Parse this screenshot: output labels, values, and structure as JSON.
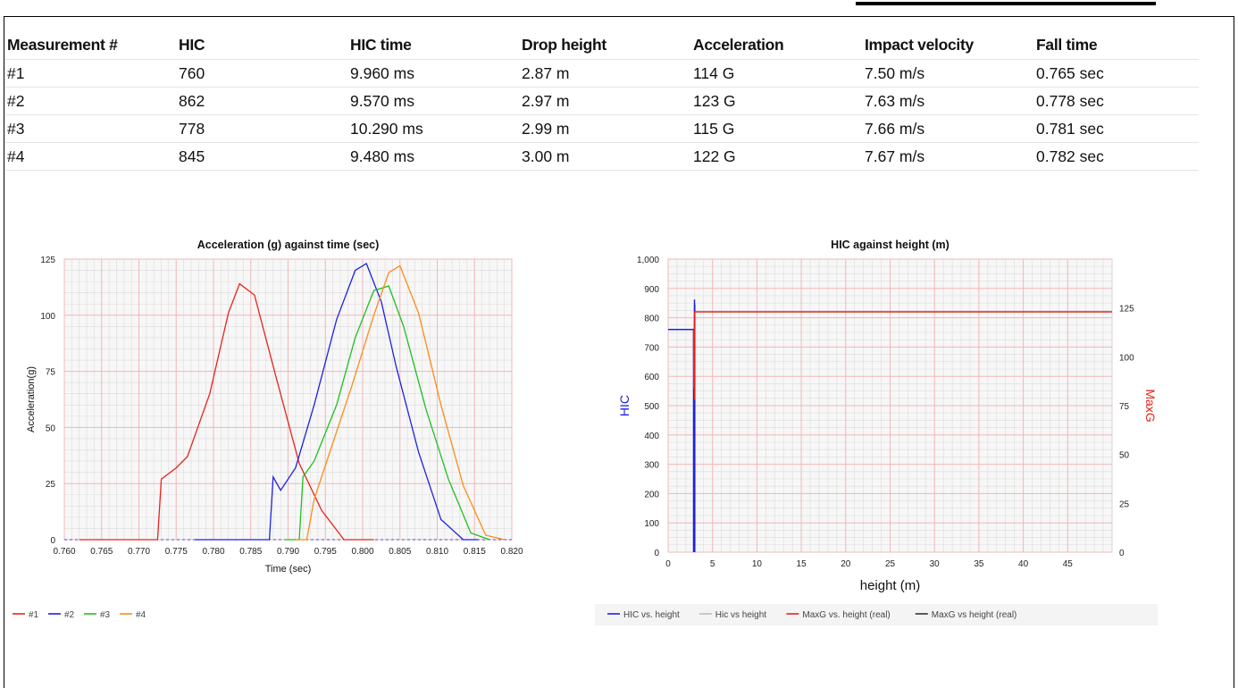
{
  "table": {
    "headers": [
      "Measurement #",
      "HIC",
      "HIC time",
      "Drop height",
      "Acceleration",
      "Impact velocity",
      "Fall time"
    ],
    "rows": [
      [
        "#1",
        "760",
        "9.960 ms",
        "2.87 m",
        "114 G",
        "7.50 m/s",
        "0.765 sec"
      ],
      [
        "#2",
        "862",
        "9.570 ms",
        "2.97 m",
        "123 G",
        "7.63 m/s",
        "0.778 sec"
      ],
      [
        "#3",
        "778",
        "10.290 ms",
        "2.99 m",
        "115 G",
        "7.66 m/s",
        "0.781 sec"
      ],
      [
        "#4",
        "845",
        "9.480 ms",
        "3.00 m",
        "122 G",
        "7.67 m/s",
        "0.782 sec"
      ]
    ]
  },
  "chart_data": [
    {
      "type": "line",
      "title": "Acceleration (g) against time (sec)",
      "xlabel": "Time (sec)",
      "ylabel": "Acceleration(g)",
      "xlim": [
        0.76,
        0.82
      ],
      "ylim": [
        0,
        125
      ],
      "x_ticks": [
        "0.760",
        "0.765",
        "0.770",
        "0.775",
        "0.780",
        "0.785",
        "0.790",
        "0.795",
        "0.800",
        "0.805",
        "0.810",
        "0.815",
        "0.820"
      ],
      "y_ticks": [
        "0",
        "25",
        "50",
        "75",
        "100",
        "125"
      ],
      "grid": true,
      "legend_position": "bottom-left",
      "series": [
        {
          "name": "#1",
          "color": "#e8231b",
          "x": [
            0.762,
            0.7725,
            0.773,
            0.775,
            0.7765,
            0.7795,
            0.782,
            0.7835,
            0.7855,
            0.7885,
            0.7915,
            0.7945,
            0.7975,
            0.8015
          ],
          "y": [
            0,
            0,
            27,
            32,
            37,
            65,
            101,
            114,
            109,
            71,
            34,
            13,
            0,
            0
          ]
        },
        {
          "name": "#2",
          "color": "#1c22e0",
          "x": [
            0.7775,
            0.7875,
            0.788,
            0.789,
            0.791,
            0.7935,
            0.7965,
            0.799,
            0.8005,
            0.8025,
            0.8045,
            0.8075,
            0.8105,
            0.8135,
            0.8155
          ],
          "y": [
            0,
            0,
            28,
            22,
            32,
            60,
            98,
            120,
            123,
            106,
            77,
            39,
            9,
            0,
            0
          ]
        },
        {
          "name": "#3",
          "color": "#1fbf1f",
          "x": [
            0.7895,
            0.7915,
            0.792,
            0.7935,
            0.7965,
            0.799,
            0.8015,
            0.8035,
            0.8055,
            0.8085,
            0.8115,
            0.8145,
            0.817
          ],
          "y": [
            0,
            0,
            28,
            35,
            60,
            90,
            111,
            113,
            95,
            58,
            27,
            3,
            0
          ]
        },
        {
          "name": "#4",
          "color": "#ff8a19",
          "x": [
            0.791,
            0.7925,
            0.7935,
            0.7955,
            0.7985,
            0.8015,
            0.8035,
            0.805,
            0.8075,
            0.8105,
            0.8135,
            0.8165,
            0.819
          ],
          "y": [
            0,
            0,
            18,
            38,
            68,
            100,
            119,
            122,
            101,
            60,
            24,
            2,
            0
          ]
        }
      ]
    },
    {
      "type": "line",
      "title": "HIC against height (m)",
      "xlabel": "height (m)",
      "ylabel": "HIC",
      "ylabel_right": "MaxG",
      "xlim": [
        0,
        50
      ],
      "ylim": [
        0,
        1000
      ],
      "ylim_right": [
        0,
        150
      ],
      "x_ticks": [
        "0",
        "5",
        "10",
        "15",
        "20",
        "25",
        "30",
        "35",
        "40",
        "45"
      ],
      "y_ticks": [
        "0",
        "100",
        "200",
        "300",
        "400",
        "500",
        "600",
        "700",
        "800",
        "900",
        "1,000"
      ],
      "y_ticks_right": [
        "0",
        "25",
        "50",
        "75",
        "100",
        "125"
      ],
      "grid": true,
      "legend_position": "bottom",
      "series": [
        {
          "name": "HIC vs. height",
          "color": "#1c22e0",
          "axis": "left",
          "x": [
            0,
            2.87,
            2.87,
            2.97,
            2.97,
            2.99,
            2.99,
            3.0,
            3.0
          ],
          "y": [
            760,
            760,
            0,
            862,
            0,
            778,
            0,
            845,
            0
          ]
        },
        {
          "name": "Hic vs height",
          "color": "#bdbdbd",
          "axis": "left",
          "x": [],
          "y": []
        },
        {
          "name": "MaxG vs. height (real)",
          "color": "#e8231b",
          "axis": "right",
          "x": [
            2.87,
            2.9,
            2.97,
            3.0,
            3.0,
            50
          ],
          "y": [
            114,
            84,
            97,
            78,
            123,
            123
          ]
        },
        {
          "name": "MaxG vs height (real)",
          "color": "#333333",
          "axis": "right",
          "x": [],
          "y": []
        }
      ]
    }
  ]
}
